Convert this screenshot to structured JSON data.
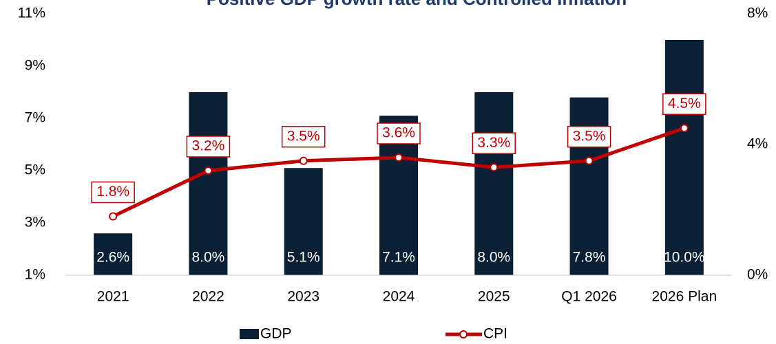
{
  "chart_data": {
    "type": "bar_line",
    "title": "Positive GDP growth rate and Controlled Inflation",
    "categories": [
      "2021",
      "2022",
      "2023",
      "2024",
      "2025",
      "Q1 2026",
      "2026 Plan"
    ],
    "series": [
      {
        "name": "GDP",
        "color": "#0c2035",
        "values": [
          2.6,
          8.0,
          5.1,
          7.1,
          8.0,
          7.8,
          10.0
        ],
        "value_labels": [
          "2.6%",
          "8.0%",
          "5.1%",
          "7.1%",
          "8.0%",
          "7.8%",
          "10.0%"
        ]
      },
      {
        "name": "CPI",
        "color": "#c00000",
        "axis": "y2",
        "values": [
          1.8,
          3.2,
          3.5,
          3.6,
          3.3,
          3.5,
          4.5
        ],
        "value_labels": [
          "1.8%",
          "3.2%",
          "3.5%",
          "3.6%",
          "3.3%",
          "3.5%",
          "4.5%"
        ]
      }
    ],
    "ylim": [
      1,
      11
    ],
    "yticks": [
      {
        "value": 1,
        "label": "1%"
      },
      {
        "value": 3,
        "label": "3%"
      },
      {
        "value": 5,
        "label": "5%"
      },
      {
        "value": 7,
        "label": "7%"
      },
      {
        "value": 9,
        "label": "9%"
      },
      {
        "value": 11,
        "label": "11%"
      }
    ],
    "y2lim": [
      0,
      8
    ],
    "y2ticks": [
      {
        "value": 0,
        "label": "0%"
      },
      {
        "value": 4,
        "label": "4%"
      },
      {
        "value": 8,
        "label": "8%"
      }
    ],
    "grid": false,
    "legend": "bottom"
  }
}
